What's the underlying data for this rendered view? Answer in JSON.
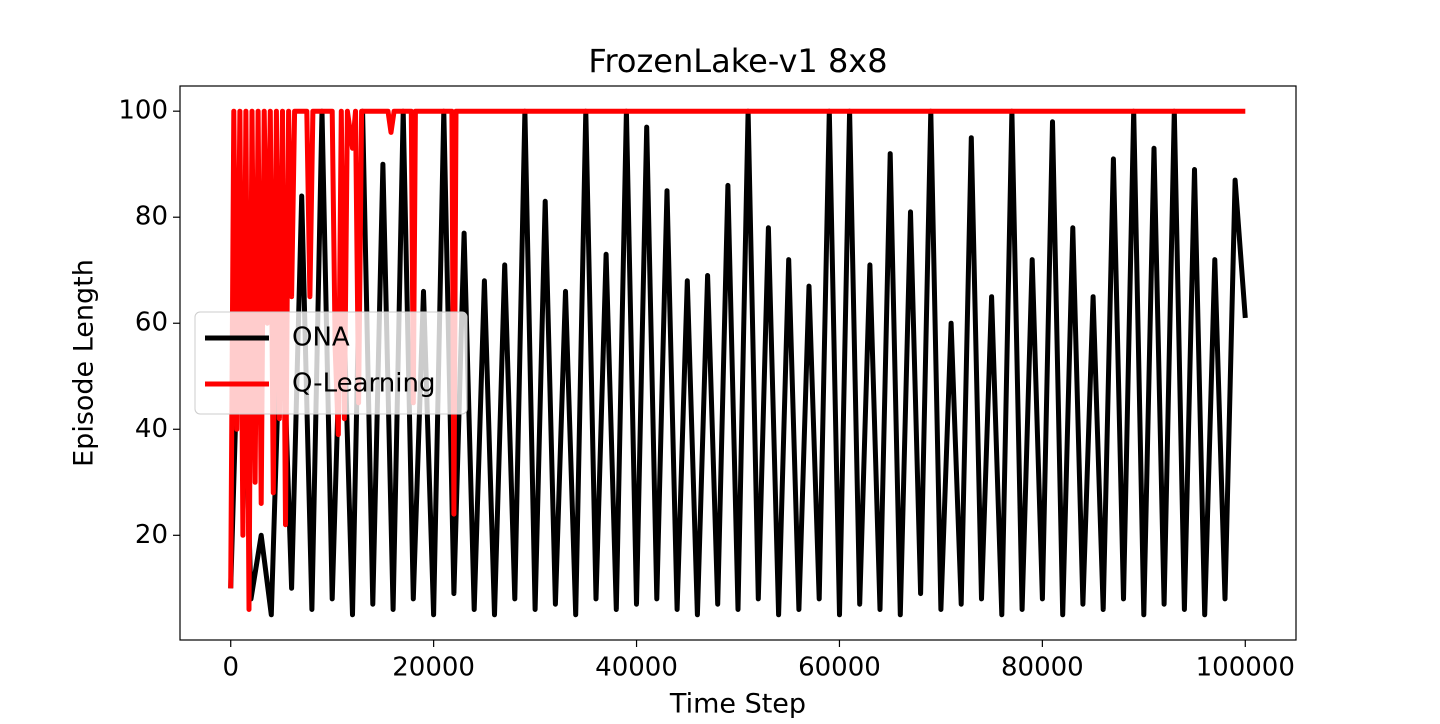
{
  "chart_data": {
    "type": "line",
    "title": "FrozenLake-v1 8x8",
    "x_label": "Time Step",
    "y_label": "Episode Length",
    "xlim": [
      -5000,
      105000
    ],
    "xticks": [
      0,
      20000,
      40000,
      60000,
      80000,
      100000
    ],
    "ylim": [
      0.25,
      104.75
    ],
    "yticks": [
      20,
      40,
      60,
      80,
      100
    ],
    "grid": false,
    "legend": "center left",
    "series": [
      {
        "name": "ONA",
        "color": "#000000",
        "x": [
          0,
          1000,
          2000,
          3000,
          4000,
          5000,
          6000,
          7000,
          8000,
          9000,
          10000,
          11000,
          12000,
          13000,
          14000,
          15000,
          16000,
          17000,
          18000,
          19000,
          20000,
          21000,
          22000,
          23000,
          24000,
          25000,
          26000,
          27000,
          28000,
          29000,
          30000,
          31000,
          32000,
          33000,
          34000,
          35000,
          36000,
          37000,
          38000,
          39000,
          40000,
          41000,
          42000,
          43000,
          44000,
          45000,
          46000,
          47000,
          48000,
          49000,
          50000,
          51000,
          52000,
          53000,
          54000,
          55000,
          56000,
          57000,
          58000,
          59000,
          60000,
          61000,
          62000,
          63000,
          64000,
          65000,
          66000,
          67000,
          68000,
          69000,
          70000,
          71000,
          72000,
          73000,
          74000,
          75000,
          76000,
          77000,
          78000,
          79000,
          80000,
          81000,
          82000,
          83000,
          84000,
          85000,
          86000,
          87000,
          88000,
          89000,
          90000,
          91000,
          92000,
          93000,
          94000,
          95000,
          96000,
          97000,
          98000,
          99000,
          100000
        ],
        "values": [
          10,
          76,
          8,
          20,
          5,
          68,
          10,
          84,
          6,
          100,
          8,
          72,
          5,
          100,
          7,
          90,
          6,
          100,
          8,
          66,
          5,
          100,
          9,
          77,
          6,
          68,
          5,
          71,
          8,
          100,
          6,
          83,
          7,
          66,
          5,
          100,
          8,
          73,
          6,
          100,
          7,
          97,
          8,
          85,
          6,
          68,
          5,
          69,
          7,
          86,
          6,
          100,
          8,
          78,
          5,
          72,
          6,
          67,
          8,
          100,
          5,
          100,
          7,
          71,
          6,
          92,
          5,
          81,
          9,
          100,
          6,
          60,
          7,
          95,
          8,
          65,
          5,
          100,
          6,
          72,
          8,
          98,
          5,
          78,
          7,
          65,
          6,
          91,
          8,
          100,
          5,
          93,
          7,
          100,
          6,
          89,
          5,
          72,
          8,
          87,
          61
        ]
      },
      {
        "name": "Q-Learning",
        "color": "#ff0000",
        "x": [
          0,
          300,
          600,
          900,
          1200,
          1500,
          1800,
          2100,
          2400,
          2700,
          3000,
          3300,
          3600,
          3900,
          4200,
          4500,
          4800,
          5100,
          5400,
          5700,
          6000,
          6300,
          7500,
          7800,
          8100,
          8400,
          10000,
          10300,
          10600,
          10900,
          11200,
          11500,
          12000,
          12300,
          12600,
          12900,
          15500,
          15800,
          16100,
          17800,
          18000,
          18200,
          21800,
          22000,
          22200,
          100000
        ],
        "values": [
          10,
          100,
          40,
          100,
          20,
          100,
          6,
          100,
          30,
          100,
          26,
          100,
          60,
          100,
          28,
          100,
          42,
          100,
          22,
          100,
          65,
          100,
          100,
          65,
          100,
          100,
          100,
          55,
          39,
          100,
          42,
          100,
          93,
          100,
          45,
          100,
          100,
          96,
          100,
          100,
          45,
          100,
          100,
          24,
          100,
          100
        ]
      }
    ]
  }
}
